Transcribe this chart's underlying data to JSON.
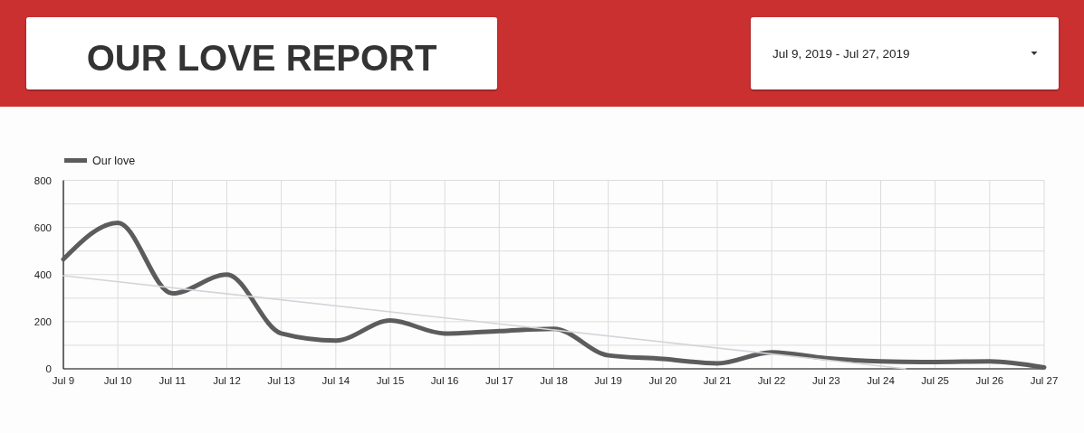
{
  "chart_data": {
    "type": "line",
    "title": "OUR LOVE REPORT",
    "subtitle": "Jul 9, 2019 - Jul 27, 2019",
    "x": [
      "2019-07-09",
      "2019-07-10",
      "2019-07-11",
      "2019-07-12",
      "2019-07-13",
      "2019-07-14",
      "2019-07-15",
      "2019-07-16",
      "2019-07-17",
      "2019-07-18",
      "2019-07-19",
      "2019-07-20",
      "2019-07-21",
      "2019-07-22",
      "2019-07-23",
      "2019-07-24",
      "2019-07-25",
      "2019-07-26",
      "2019-07-27"
    ],
    "series": [
      {
        "name": "Our love",
        "color": "#5c5c5c",
        "values": [
          465,
          620,
          320,
          400,
          150,
          120,
          205,
          150,
          160,
          170,
          57,
          42,
          23,
          70,
          45,
          32,
          29,
          32,
          6
        ]
      },
      {
        "type": "line",
        "color": "#d7d3db",
        "x": [
          "2019-07-09",
          "2019-07-24T11:00"
        ],
        "values": [
          395,
          0
        ]
      }
    ],
    "xlim": [
      "2019-07-09",
      "2019-07-27"
    ],
    "xticks": [
      {
        "value": "2019-07-09",
        "label": "Jul 9"
      },
      {
        "value": "2019-07-10",
        "label": "Jul 10"
      },
      {
        "value": "2019-07-11",
        "label": "Jul 11"
      },
      {
        "value": "2019-07-12",
        "label": "Jul 12"
      },
      {
        "value": "2019-07-13",
        "label": "Jul 13"
      },
      {
        "value": "2019-07-14",
        "label": "Jul 14"
      },
      {
        "value": "2019-07-15",
        "label": "Jul 15"
      },
      {
        "value": "2019-07-16",
        "label": "Jul 16"
      },
      {
        "value": "2019-07-17",
        "label": "Jul 17"
      },
      {
        "value": "2019-07-18",
        "label": "Jul 18"
      },
      {
        "value": "2019-07-19",
        "label": "Jul 19"
      },
      {
        "value": "2019-07-20",
        "label": "Jul 20"
      },
      {
        "value": "2019-07-21",
        "label": "Jul 21"
      },
      {
        "value": "2019-07-22",
        "label": "Jul 22"
      },
      {
        "value": "2019-07-23",
        "label": "Jul 23"
      },
      {
        "value": "2019-07-24",
        "label": "Jul 24"
      },
      {
        "value": "2019-07-25",
        "label": "Jul 25"
      },
      {
        "value": "2019-07-26",
        "label": "Jul 26"
      },
      {
        "value": "2019-07-27",
        "label": "Jul 27"
      }
    ],
    "ylim": [
      0,
      800
    ],
    "yticks": [
      0,
      {
        "value": 100,
        "label": null
      },
      200,
      {
        "value": 300,
        "label": null
      },
      400,
      {
        "value": 500,
        "label": null
      },
      600,
      {
        "value": 700,
        "label": null
      },
      800
    ],
    "grid": true,
    "legend": "top left"
  }
}
